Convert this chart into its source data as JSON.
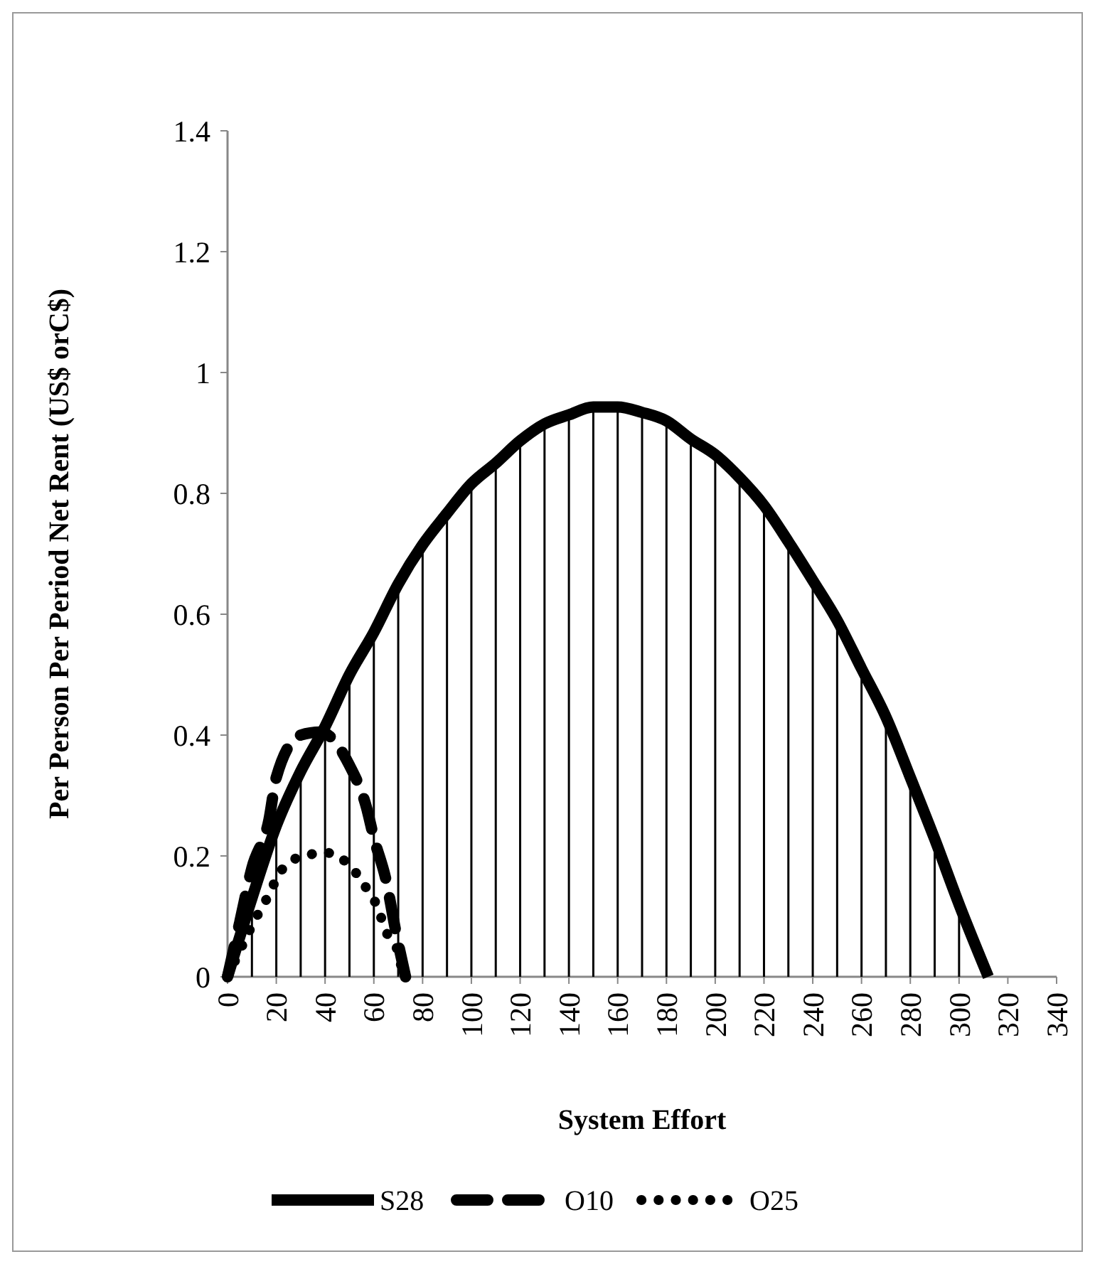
{
  "chart_data": {
    "type": "line",
    "xlabel": "System Effort",
    "ylabel": "Per Person Per Period Net Rent (US$ orC$)",
    "xlim": [
      0,
      340
    ],
    "xticks": [
      0,
      20,
      40,
      60,
      80,
      100,
      120,
      140,
      160,
      180,
      200,
      220,
      240,
      260,
      280,
      300,
      320,
      340
    ],
    "ylim": [
      0,
      1.4
    ],
    "yticks": [
      0,
      0.2,
      0.4,
      0.6,
      0.8,
      1,
      1.2,
      1.4
    ],
    "grid": false,
    "legend": "bottom",
    "series": [
      {
        "name": "S28",
        "color": "#000000",
        "line_style": "solid",
        "x": [
          0,
          10,
          20,
          30,
          40,
          50,
          60,
          70,
          80,
          90,
          100,
          110,
          120,
          130,
          140,
          150,
          160,
          170,
          180,
          190,
          200,
          210,
          220,
          230,
          240,
          250,
          260,
          270,
          280,
          290,
          300,
          312
        ],
        "values": [
          0,
          0.13,
          0.25,
          0.34,
          0.414,
          0.5,
          0.57,
          0.65,
          0.715,
          0.767,
          0.816,
          0.85,
          0.887,
          0.915,
          0.93,
          0.943,
          0.943,
          0.934,
          0.92,
          0.89,
          0.864,
          0.826,
          0.78,
          0.72,
          0.656,
          0.59,
          0.51,
          0.43,
          0.33,
          0.228,
          0.12,
          0
        ],
        "errors": [
          null,
          [
            0,
            0.13
          ],
          [
            0,
            0.25
          ],
          [
            0,
            0.34
          ],
          [
            0,
            0.414
          ],
          [
            0,
            0.5
          ],
          [
            0,
            0.57
          ],
          [
            0,
            0.65
          ],
          [
            0,
            0.715
          ],
          [
            0,
            0.767
          ],
          [
            0,
            0.816
          ],
          [
            0,
            0.85
          ],
          [
            0,
            0.887
          ],
          [
            0,
            0.915
          ],
          [
            0,
            0.93
          ],
          [
            0,
            0.943
          ],
          [
            0,
            0.943
          ],
          [
            0,
            0.934
          ],
          [
            0,
            0.92
          ],
          [
            0,
            0.89
          ],
          [
            0,
            0.864
          ],
          [
            0,
            0.826
          ],
          [
            0,
            0.78
          ],
          [
            0,
            0.72
          ],
          [
            0,
            0.656
          ],
          [
            0,
            0.59
          ],
          [
            0,
            0.51
          ],
          [
            0,
            0.43
          ],
          [
            0,
            0.33
          ],
          [
            0,
            0.228
          ],
          [
            0,
            0.12
          ],
          null
        ]
      },
      {
        "name": "O10",
        "color": "#000000",
        "line_style": "dashed",
        "x": [
          0,
          5,
          10,
          17,
          20,
          30,
          38,
          50,
          57,
          60,
          65,
          69,
          73
        ],
        "values": [
          0,
          0.09,
          0.18,
          0.26,
          0.33,
          0.4,
          0.405,
          0.35,
          0.28,
          0.23,
          0.16,
          0.075,
          0
        ]
      },
      {
        "name": "O25",
        "color": "#000000",
        "line_style": "dotted",
        "x": [
          0,
          12,
          17.5,
          21,
          31,
          41,
          51,
          58,
          61,
          65,
          70,
          72
        ],
        "values": [
          0,
          0.1,
          0.14,
          0.17,
          0.2,
          0.205,
          0.18,
          0.14,
          0.12,
          0.075,
          0.04,
          0
        ]
      }
    ]
  }
}
